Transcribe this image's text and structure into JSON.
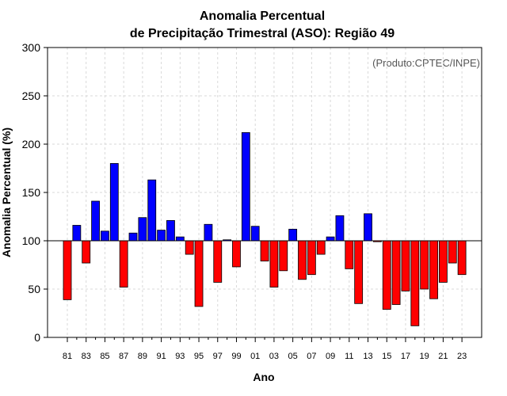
{
  "chart_data": {
    "type": "bar",
    "title_line1": "Anomalia Percentual",
    "title_line2": "de Precipitação Trimestral (ASO): Região 49",
    "xlabel": "Ano",
    "ylabel": "Anomalia Percentual (%)",
    "credit": "(Produto:CPTEC/INPE)",
    "ylim": [
      0,
      300
    ],
    "yticks": [
      0,
      50,
      100,
      150,
      200,
      250,
      300
    ],
    "baseline": 100,
    "grid": true,
    "colors": {
      "above": "#0000ff",
      "below": "#ff0000",
      "outline": "#000000",
      "grid": "#d9d9d9"
    },
    "categories": [
      "81",
      "82",
      "83",
      "84",
      "85",
      "86",
      "87",
      "88",
      "89",
      "90",
      "91",
      "92",
      "93",
      "94",
      "95",
      "96",
      "97",
      "98",
      "99",
      "00",
      "01",
      "02",
      "03",
      "04",
      "05",
      "06",
      "07",
      "08",
      "09",
      "10",
      "11",
      "12",
      "13",
      "14",
      "15",
      "16",
      "17",
      "18",
      "19",
      "20",
      "21",
      "22",
      "23"
    ],
    "xtick_labels": [
      "81",
      "83",
      "85",
      "87",
      "89",
      "91",
      "93",
      "95",
      "97",
      "99",
      "01",
      "03",
      "05",
      "07",
      "09",
      "11",
      "13",
      "15",
      "17",
      "19",
      "21",
      "23"
    ],
    "values": [
      39,
      116,
      77,
      141,
      110,
      180,
      52,
      108,
      124,
      163,
      111,
      121,
      104,
      86,
      32,
      117,
      57,
      101,
      73,
      212,
      115,
      79,
      52,
      69,
      112,
      60,
      65,
      86,
      104,
      126,
      71,
      35,
      128,
      99,
      29,
      34,
      48,
      12,
      50,
      40,
      57,
      77,
      65
    ]
  }
}
